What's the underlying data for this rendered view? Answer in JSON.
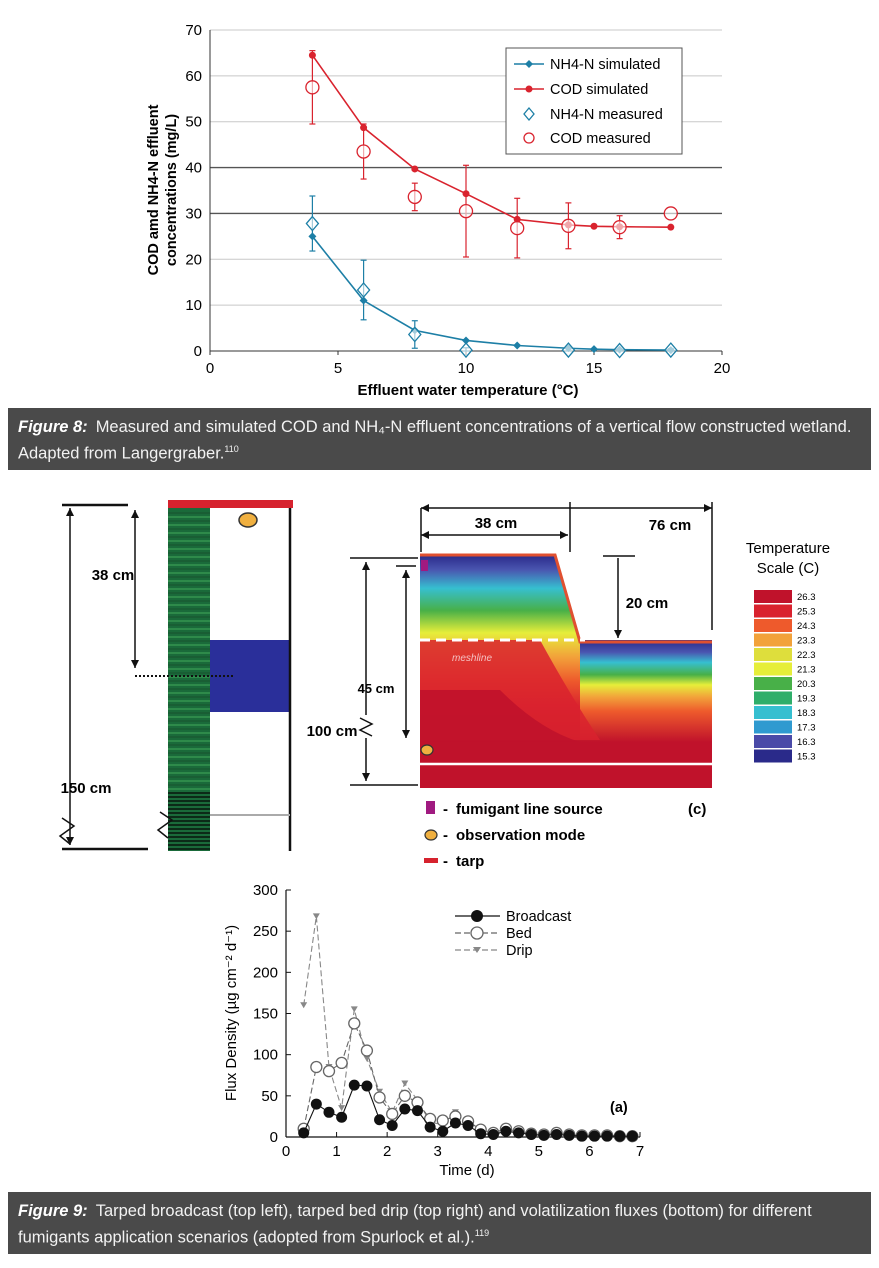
{
  "figure8": {
    "caption_label": "Figure 8:",
    "caption_text": "Measured and simulated COD and NH₄-N effluent concentrations of a vertical flow constructed wetland. Adapted from Langergraber.",
    "caption_ref": "110"
  },
  "figure9": {
    "caption_label": "Figure 9:",
    "caption_text": "Tarped broadcast (top left), tarped bed drip (top right) and volatilization fluxes (bottom) for different fumigants application scenarios (adopted from Spurlock et al.).",
    "caption_ref": "119"
  },
  "profile_left": {
    "label_38": "38 cm",
    "label_150": "150 cm"
  },
  "profile_right": {
    "label_38": "38 cm",
    "label_76": "76 cm",
    "label_20": "20 cm",
    "label_45": "45 cm",
    "label_100": "100 cm",
    "meshline": "meshline",
    "panel_label": "(c)",
    "scale_title_1": "Temperature",
    "scale_title_2": "Scale (C)",
    "scale_values": [
      "26.3",
      "25.3",
      "24.3",
      "23.3",
      "22.3",
      "21.3",
      "20.3",
      "19.3",
      "18.3",
      "17.3",
      "16.3",
      "15.3"
    ],
    "scale_colors": [
      "#c0122b",
      "#d9222e",
      "#ee5a2c",
      "#f2a23a",
      "#dede3c",
      "#e6ee3a",
      "#48b048",
      "#2fae6a",
      "#36bfd0",
      "#2f9ad0",
      "#4a4aa8",
      "#2a2a8a"
    ],
    "legend": [
      "fumigant line source",
      "observation mode",
      "tarp"
    ]
  },
  "chart_data": [
    {
      "type": "line",
      "title": "",
      "xlabel": "Effluent water temperature (°C)",
      "ylabel_line1": "COD amd NH4-N effluent",
      "ylabel_line2": "concentrations (mg/L)",
      "xlim": [
        0,
        20
      ],
      "ylim": [
        0,
        70
      ],
      "xticks": [
        "0",
        "5",
        "10",
        "15",
        "20"
      ],
      "yticks": [
        "0",
        "10",
        "20",
        "30",
        "40",
        "50",
        "60",
        "70"
      ],
      "grid": "horizontal",
      "legend_position": "top-right",
      "legend": [
        "NH4-N simulated",
        "COD simulated",
        "NH4-N measured",
        "COD measured"
      ],
      "series": [
        {
          "name": "NH4-N simulated",
          "color": "#1d7fa6",
          "x": [
            4,
            6,
            8,
            10,
            12,
            14,
            15,
            16,
            18
          ],
          "y": [
            25,
            11,
            4.5,
            2.3,
            1.2,
            0.6,
            0.4,
            0.3,
            0.2
          ]
        },
        {
          "name": "COD simulated",
          "color": "#d9232e",
          "x": [
            4,
            6,
            8,
            10,
            12,
            14,
            15,
            16,
            18
          ],
          "y": [
            64.5,
            48.7,
            39.7,
            34.3,
            28.7,
            27.5,
            27.2,
            27.1,
            27
          ]
        },
        {
          "name": "NH4-N measured",
          "color": "#1d7fa6",
          "x": [
            4,
            6,
            8,
            10,
            14,
            16,
            18
          ],
          "y": [
            27.8,
            13.3,
            3.6,
            0.2,
            0.2,
            0.1,
            0.2
          ],
          "err": [
            6,
            6.5,
            3,
            0.5,
            0.3,
            0.2,
            0.3
          ]
        },
        {
          "name": "COD measured",
          "color": "#d9232e",
          "x": [
            4,
            6,
            8,
            10,
            12,
            14,
            16,
            18
          ],
          "y": [
            57.5,
            43.5,
            33.6,
            30.5,
            26.8,
            27.3,
            27,
            30
          ],
          "err": [
            8,
            6,
            3,
            10,
            6.5,
            5,
            2.5,
            0
          ]
        }
      ]
    },
    {
      "type": "line",
      "title": "",
      "xlabel": "Time (d)",
      "ylabel": "Flux Density (µg cm⁻² d⁻¹)",
      "annotation": "(a)",
      "xlim": [
        0,
        7
      ],
      "ylim": [
        0,
        300
      ],
      "xticks": [
        "0",
        "1",
        "2",
        "3",
        "4",
        "5",
        "6",
        "7"
      ],
      "yticks": [
        "0",
        "50",
        "100",
        "150",
        "200",
        "250",
        "300"
      ],
      "legend_position": "top-center",
      "legend": [
        "Broadcast",
        "Bed",
        "Drip"
      ],
      "series": [
        {
          "name": "Broadcast",
          "x": [
            0.35,
            0.6,
            0.85,
            1.1,
            1.35,
            1.6,
            1.85,
            2.1,
            2.35,
            2.6,
            2.85,
            3.1,
            3.35,
            3.6,
            3.85,
            4.1,
            4.35,
            4.6,
            4.85,
            5.1,
            5.35,
            5.6,
            5.85,
            6.1,
            6.35,
            6.6,
            6.85
          ],
          "y": [
            5,
            40,
            30,
            24,
            63,
            62,
            21,
            14,
            34,
            32,
            12,
            7,
            17,
            14,
            4,
            3,
            7,
            5,
            3,
            2,
            3,
            2,
            1,
            1,
            1,
            1,
            1
          ]
        },
        {
          "name": "Bed",
          "x": [
            0.35,
            0.6,
            0.85,
            1.1,
            1.35,
            1.6,
            1.85,
            2.1,
            2.35,
            2.6,
            2.85,
            3.1,
            3.35,
            3.6,
            3.85,
            4.1,
            4.35,
            4.6,
            4.85,
            5.1,
            5.35,
            5.6,
            5.85,
            6.1,
            6.35,
            6.6,
            6.85
          ],
          "y": [
            10,
            85,
            80,
            90,
            138,
            105,
            48,
            28,
            50,
            42,
            22,
            20,
            25,
            19,
            9,
            5,
            10,
            7,
            4,
            3,
            5,
            3,
            2,
            2,
            2,
            1,
            1
          ]
        },
        {
          "name": "Drip",
          "x": [
            0.35,
            0.6,
            0.85,
            1.1,
            1.35,
            1.6,
            1.85,
            2.1,
            2.35,
            2.6,
            2.85,
            3.1,
            3.35,
            3.6,
            3.85,
            4.1,
            4.35,
            4.6,
            4.85,
            5.1,
            5.35,
            5.6,
            5.85,
            6.1,
            6.35,
            6.6,
            6.85
          ],
          "y": [
            160,
            268,
            85,
            35,
            155,
            95,
            55,
            30,
            65,
            45,
            18,
            15,
            30,
            20,
            8,
            5,
            10,
            6,
            4,
            3,
            4,
            3,
            2,
            2,
            2,
            1,
            1
          ]
        }
      ]
    }
  ]
}
